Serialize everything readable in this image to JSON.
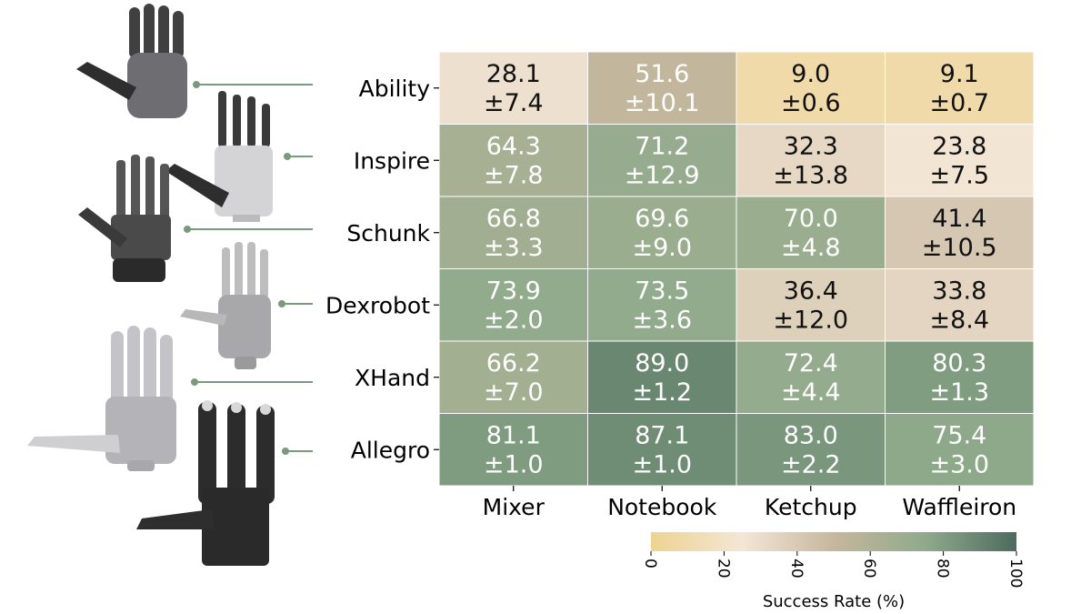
{
  "chart_data": {
    "type": "heatmap",
    "rows": [
      "Ability",
      "Inspire",
      "Schunk",
      "Dexrobot",
      "XHand",
      "Allegro"
    ],
    "columns": [
      "Mixer",
      "Notebook",
      "Ketchup",
      "Waffleiron"
    ],
    "values": [
      [
        28.1,
        51.6,
        9.0,
        9.1
      ],
      [
        64.3,
        71.2,
        32.3,
        23.8
      ],
      [
        66.8,
        69.6,
        70.0,
        41.4
      ],
      [
        73.9,
        73.5,
        36.4,
        33.8
      ],
      [
        66.2,
        89.0,
        72.4,
        80.3
      ],
      [
        81.1,
        87.1,
        83.0,
        75.4
      ]
    ],
    "errors": [
      [
        7.4,
        10.1,
        0.6,
        0.7
      ],
      [
        7.8,
        12.9,
        13.8,
        7.5
      ],
      [
        3.3,
        9.0,
        4.8,
        10.5
      ],
      [
        2.0,
        3.6,
        12.0,
        8.4
      ],
      [
        7.0,
        1.2,
        4.4,
        1.3
      ],
      [
        1.0,
        1.0,
        2.2,
        3.0
      ]
    ],
    "value_labels": [
      [
        "28.1",
        "51.6",
        "9.0",
        "9.1"
      ],
      [
        "64.3",
        "71.2",
        "32.3",
        "23.8"
      ],
      [
        "66.8",
        "69.6",
        "70.0",
        "41.4"
      ],
      [
        "73.9",
        "73.5",
        "36.4",
        "33.8"
      ],
      [
        "66.2",
        "89.0",
        "72.4",
        "80.3"
      ],
      [
        "81.1",
        "87.1",
        "83.0",
        "75.4"
      ]
    ],
    "error_labels": [
      [
        "±7.4",
        "±10.1",
        "±0.6",
        "±0.7"
      ],
      [
        "±7.8",
        "±12.9",
        "±13.8",
        "±7.5"
      ],
      [
        "±3.3",
        "±9.0",
        "±4.8",
        "±10.5"
      ],
      [
        "±2.0",
        "±3.6",
        "±12.0",
        "±8.4"
      ],
      [
        "±7.0",
        "±1.2",
        "±4.4",
        "±1.3"
      ],
      [
        "±1.0",
        "±1.0",
        "±2.2",
        "±3.0"
      ]
    ],
    "colorbar": {
      "label": "Success Rate (%)",
      "ticks": [
        0,
        20,
        40,
        60,
        80,
        100
      ],
      "tick_labels": [
        "0",
        "20",
        "40",
        "60",
        "80",
        "100"
      ],
      "range": [
        0,
        100
      ],
      "colors": [
        "#eed391",
        "#f3e6d6",
        "#c6b79d",
        "#8faa8b",
        "#4d6b5e"
      ]
    }
  }
}
